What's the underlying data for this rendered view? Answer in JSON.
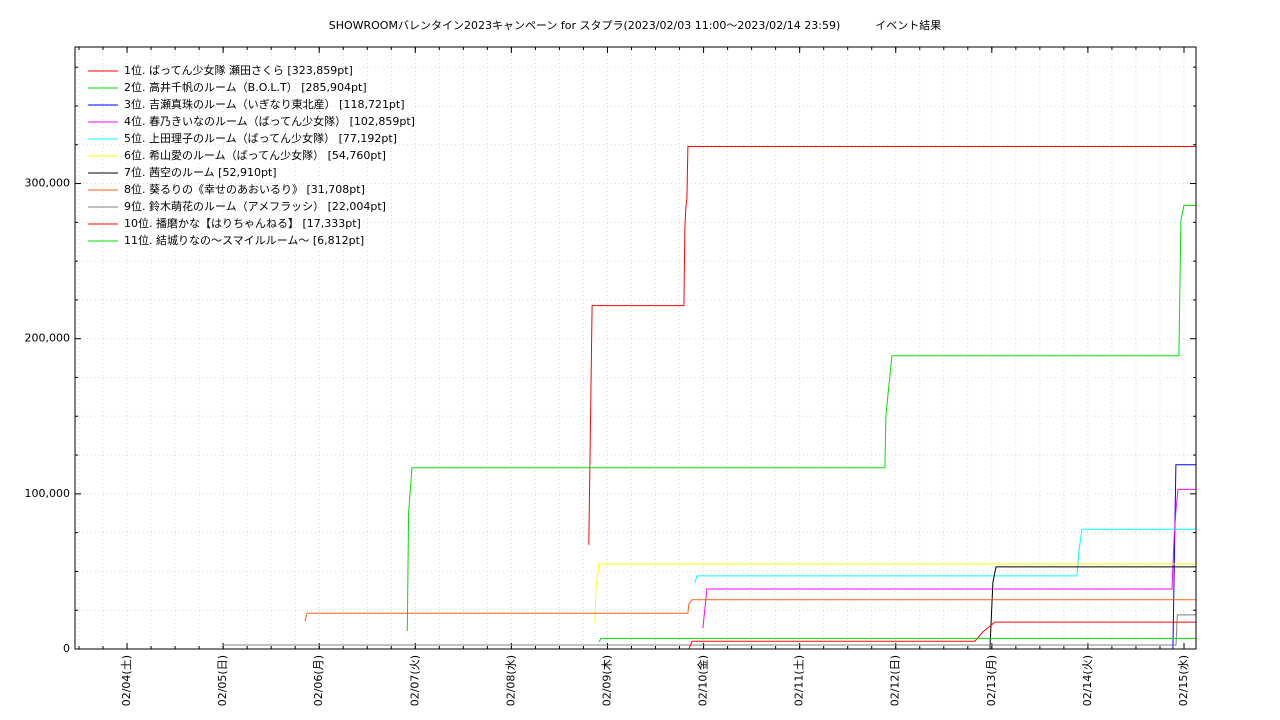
{
  "chart_data": {
    "type": "line",
    "title": "SHOWROOMバレンタイン2023キャンペーン for スタプラ(2023/02/03 11:00～2023/02/14 23:59)          イベント結果",
    "xlim": [
      "02/03 11:00",
      "02/15 03:00"
    ],
    "xticks": [
      {
        "value": "02/04 00:00",
        "label": "02/04(土)"
      },
      {
        "value": "02/05 00:00",
        "label": "02/05(日)"
      },
      {
        "value": "02/06 00:00",
        "label": "02/06(月)"
      },
      {
        "value": "02/07 00:00",
        "label": "02/07(火)"
      },
      {
        "value": "02/08 00:00",
        "label": "02/08(水)"
      },
      {
        "value": "02/09 00:00",
        "label": "02/09(木)"
      },
      {
        "value": "02/10 00:00",
        "label": "02/10(金)"
      },
      {
        "value": "02/11 00:00",
        "label": "02/11(土)"
      },
      {
        "value": "02/12 00:00",
        "label": "02/12(日)"
      },
      {
        "value": "02/13 00:00",
        "label": "02/13(月)"
      },
      {
        "value": "02/14 00:00",
        "label": "02/14(火)"
      },
      {
        "value": "02/15 00:00",
        "label": "02/15(水)"
      }
    ],
    "xminor_step_hours": 6,
    "ylim": [
      0,
      388000
    ],
    "yticks": [
      0,
      {
        "value": 100000,
        "label": "100,000"
      },
      {
        "value": 200000,
        "label": "200,000"
      },
      {
        "value": 300000,
        "label": "300,000"
      }
    ],
    "yminor": [
      25000,
      50000,
      75000,
      125000,
      150000,
      175000,
      225000,
      250000,
      275000,
      325000,
      350000,
      375000
    ],
    "grid": true,
    "legend": "upper-left",
    "series": [
      {
        "name": "1位. ばってん少女隊 瀬田さくら [323,859pt]",
        "color": "#ff0000",
        "x": [
          "02/08 19:20",
          "02/08 20:10",
          "02/09 19:06",
          "02/09 19:20",
          "02/09 19:36",
          "02/09 19:50",
          "02/09 20:06",
          "02/15 03:00"
        ],
        "values": [
          67100,
          221300,
          221300,
          272000,
          285000,
          290000,
          323859,
          323859
        ]
      },
      {
        "name": "2位. 高井千帆のルーム（B.O.L.T） [285,904pt]",
        "color": "#00e000",
        "x": [
          "02/06 22:00",
          "02/06 22:20",
          "02/06 23:10",
          "02/11 21:18",
          "02/11 21:33",
          "02/11 22:18",
          "02/11 23:03",
          "02/14 22:43",
          "02/14 23:13",
          "02/14 23:58",
          "02/15 03:00"
        ],
        "values": [
          11600,
          87700,
          116800,
          116800,
          150000,
          170000,
          189000,
          189000,
          276100,
          285904,
          285904
        ]
      },
      {
        "name": "3位. 吉瀬真珠のルーム（いぎなり東北産） [118,721pt]",
        "color": "#0000ff",
        "x": [
          "02/14 21:14",
          "02/14 21:59",
          "02/15 03:00"
        ],
        "values": [
          0,
          118721,
          118721
        ]
      },
      {
        "name": "4位. 春乃きいなのルーム（ばってん少女隊） [102,859pt]",
        "color": "#ff00ff",
        "x": [
          "02/09 23:50",
          "02/10 00:50",
          "02/14 21:00",
          "02/14 21:30",
          "02/14 22:00",
          "02/14 22:30",
          "02/15 03:00"
        ],
        "values": [
          13500,
          38700,
          38700,
          70000,
          90000,
          102859,
          102859
        ]
      },
      {
        "name": "5位. 上田理子のルーム（ばってん少女隊） [77,192pt]",
        "color": "#00ffff",
        "x": [
          "02/09 21:50",
          "02/09 22:20",
          "02/13 21:15",
          "02/13 21:45",
          "02/13 22:30",
          "02/15 03:00"
        ],
        "values": [
          42600,
          47100,
          47100,
          63000,
          77192,
          77192
        ]
      },
      {
        "name": "6位. 希山愛のルーム（ばってん少女隊） [54,760pt]",
        "color": "#ffff00",
        "x": [
          "02/08 20:53",
          "02/08 21:08",
          "02/08 21:53",
          "02/15 03:00"
        ],
        "values": [
          16800,
          40000,
          54760,
          54760
        ]
      },
      {
        "name": "7位. 茜空のルーム [52,910pt]",
        "color": "#000000",
        "x": [
          "02/12 23:32",
          "02/13 00:16",
          "02/13 01:02",
          "02/15 03:00"
        ],
        "values": [
          0,
          43000,
          52910,
          52910
        ]
      },
      {
        "name": "8位. 葵るりの《幸せのあおいるり》 [31,708pt]",
        "color": "#ff6010",
        "x": [
          "02/05 20:27",
          "02/05 20:57",
          "02/09 20:06",
          "02/09 20:21",
          "02/09 21:06",
          "02/15 03:00"
        ],
        "values": [
          18000,
          23000,
          23000,
          29000,
          31708,
          31708
        ]
      },
      {
        "name": "9位. 鈴木萌花のルーム（アメフラッシ） [22,004pt]",
        "color": "#808080",
        "x": [
          "02/05 00:00",
          "02/14 22:00",
          "02/14 22:20",
          "02/15 03:00"
        ],
        "values": [
          2600,
          2600,
          22004,
          22004
        ]
      },
      {
        "name": "10位. 播磨かな【はりちゃんねる】 [17,333pt]",
        "color": "#ff0000",
        "x": [
          "02/09 20:21",
          "02/09 21:06",
          "02/12 19:47",
          "02/12 21:46",
          "02/13 00:46",
          "02/15 03:00"
        ],
        "values": [
          0,
          5000,
          5000,
          11000,
          17333,
          17333
        ]
      },
      {
        "name": "11位. 結城りなの〜スマイルルーム〜 [6,812pt]",
        "color": "#00e000",
        "x": [
          "02/08 21:53",
          "02/08 22:23",
          "02/15 03:00"
        ],
        "values": [
          4500,
          6812,
          6812
        ]
      }
    ]
  }
}
